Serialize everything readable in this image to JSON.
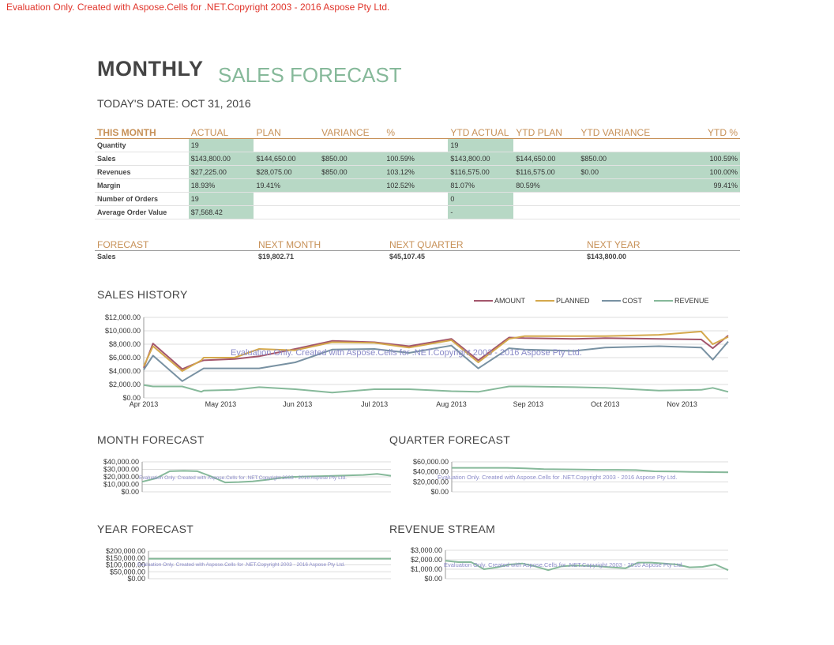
{
  "evaluation_notice": "Evaluation Only. Created with Aspose.Cells for .NET.Copyright 2003 - 2016 Aspose Pty Ltd.",
  "title_bold": "MONTHLY",
  "title_light": "SALES FORECAST",
  "todays_date": "TODAY'S DATE: OCT 31, 2016",
  "summary_table": {
    "headers": [
      "THIS MONTH",
      "ACTUAL",
      "PLAN",
      "VARIANCE",
      "%",
      "YTD ACTUAL",
      "YTD PLAN",
      "YTD VARIANCE",
      "YTD %"
    ],
    "rows": [
      {
        "label": "Quantity",
        "actual": "19",
        "plan": "",
        "variance": "",
        "pct": "",
        "ytd_actual": "19",
        "ytd_plan": "",
        "ytd_variance": "",
        "ytd_pct": ""
      },
      {
        "label": "Sales",
        "actual": "$143,800.00",
        "plan": "$144,650.00",
        "variance": "$850.00",
        "pct": "100.59%",
        "ytd_actual": "$143,800.00",
        "ytd_plan": "$144,650.00",
        "ytd_variance": "$850.00",
        "ytd_pct": "100.59%"
      },
      {
        "label": "Revenues",
        "actual": "$27,225.00",
        "plan": "$28,075.00",
        "variance": "$850.00",
        "pct": "103.12%",
        "ytd_actual": "$116,575.00",
        "ytd_plan": "$116,575.00",
        "ytd_variance": "$0.00",
        "ytd_pct": "100.00%"
      },
      {
        "label": "Margin",
        "actual": "18.93%",
        "plan": "19.41%",
        "variance": "",
        "pct": "102.52%",
        "ytd_actual": "81.07%",
        "ytd_plan": "80.59%",
        "ytd_variance": "",
        "ytd_pct": "99.41%"
      },
      {
        "label": "Number of Orders",
        "actual": "19",
        "plan": "",
        "variance": "",
        "pct": "",
        "ytd_actual": "0",
        "ytd_plan": "",
        "ytd_variance": "",
        "ytd_pct": ""
      },
      {
        "label": "Average Order Value",
        "actual": "$7,568.42",
        "plan": "",
        "variance": "",
        "pct": "",
        "ytd_actual": "-",
        "ytd_plan": "",
        "ytd_variance": "",
        "ytd_pct": ""
      }
    ]
  },
  "forecast_table": {
    "headers": [
      "FORECAST",
      "NEXT MONTH",
      "NEXT QUARTER",
      "NEXT YEAR"
    ],
    "row": {
      "label": "Sales",
      "next_month": "$19,802.71",
      "next_quarter": "$45,107.45",
      "next_year": "$143,800.00"
    }
  },
  "chart_data": [
    {
      "type": "line",
      "title": "SALES HISTORY",
      "legend_position": "top-right",
      "x_tick_labels": [
        "Apr 2013",
        "May 2013",
        "Jun 2013",
        "Jul 2013",
        "Aug 2013",
        "Sep 2013",
        "Oct 2013",
        "Nov 2013"
      ],
      "x": [
        0,
        0.12,
        0.5,
        0.75,
        0.78,
        1.18,
        1.5,
        1.97,
        2.45,
        3.0,
        3.45,
        4.0,
        4.35,
        4.75,
        4.95,
        5.6,
        6.0,
        6.7,
        7.25,
        7.4,
        7.6
      ],
      "ylim": [
        0,
        12000
      ],
      "y_tick_labels": [
        "$0.00",
        "$2,000.00",
        "$4,000.00",
        "$6,000.00",
        "$8,000.00",
        "$10,000.00",
        "$12,000.00"
      ],
      "grid": true,
      "series": [
        {
          "name": "AMOUNT",
          "color": "#a3566c",
          "values": [
            4500,
            8100,
            4300,
            5500,
            5600,
            5800,
            6200,
            7300,
            8500,
            8300,
            7700,
            8800,
            5600,
            9000,
            8900,
            8800,
            8900,
            8800,
            8700,
            7400,
            9300
          ]
        },
        {
          "name": "PLANNED",
          "color": "#d4a84c",
          "values": [
            4700,
            7700,
            4000,
            5600,
            6000,
            6000,
            7300,
            7100,
            8300,
            8200,
            7500,
            8600,
            5300,
            8800,
            9200,
            9200,
            9200,
            9400,
            9900,
            8000,
            9100
          ]
        },
        {
          "name": "COST",
          "color": "#7891a2",
          "values": [
            4200,
            6300,
            2500,
            4200,
            4400,
            4400,
            4400,
            5300,
            7200,
            7300,
            6700,
            7800,
            4400,
            7400,
            7200,
            7000,
            7500,
            7700,
            7500,
            5700,
            8400
          ]
        },
        {
          "name": "REVENUE",
          "color": "#86b99a",
          "values": [
            1900,
            1700,
            1700,
            900,
            1100,
            1200,
            1600,
            1300,
            800,
            1300,
            1300,
            1000,
            900,
            1700,
            1700,
            1600,
            1500,
            1100,
            1200,
            1500,
            900
          ]
        }
      ]
    },
    {
      "type": "line",
      "title": "MONTH FORECAST",
      "ylim": [
        0,
        40000
      ],
      "y_tick_labels": [
        "$0.00",
        "$10,000.00",
        "$20,000.00",
        "$30,000.00",
        "$40,000.00"
      ],
      "series": [
        {
          "name": "",
          "color": "#86b99a",
          "values": [
            13500,
            18000,
            27500,
            28000,
            27500,
            20500,
            12500,
            13000,
            14000,
            16000,
            18500,
            20000,
            20500,
            21000,
            21500,
            22000,
            22500,
            24000,
            21500
          ]
        }
      ]
    },
    {
      "type": "line",
      "title": "QUARTER FORECAST",
      "ylim": [
        0,
        60000
      ],
      "y_tick_labels": [
        "$0.00",
        "$20,000.00",
        "$40,000.00",
        "$60,000.00"
      ],
      "series": [
        {
          "name": "",
          "color": "#86b99a",
          "values": [
            48000,
            48000,
            48000,
            48000,
            47000,
            45500,
            45000,
            44500,
            44000,
            44000,
            43500,
            41000,
            40500,
            40000,
            39500,
            39000
          ]
        }
      ]
    },
    {
      "type": "line",
      "title": "YEAR FORECAST",
      "ylim": [
        0,
        200000
      ],
      "y_tick_labels": [
        "$0.00",
        "$50,000.00",
        "$100,000.00",
        "$150,000.00",
        "$200,000.00"
      ],
      "series": [
        {
          "name": "",
          "color": "#86b99a",
          "values": [
            143800,
            143800,
            143800,
            143800,
            143800,
            143800,
            143800,
            143800,
            143800,
            143800,
            143800,
            143800
          ]
        }
      ]
    },
    {
      "type": "line",
      "title": "REVENUE STREAM",
      "ylim": [
        0,
        3000
      ],
      "y_tick_labels": [
        "$0.00",
        "$1,000.00",
        "$2,000.00",
        "$3,000.00"
      ],
      "series": [
        {
          "name": "",
          "color": "#86b99a",
          "values": [
            1900,
            1750,
            1750,
            1000,
            1200,
            1500,
            1600,
            1300,
            900,
            1300,
            1400,
            1350,
            1300,
            1200,
            1100,
            1700,
            1700,
            1600,
            1500,
            1200,
            1250,
            1500,
            900
          ]
        }
      ]
    }
  ]
}
